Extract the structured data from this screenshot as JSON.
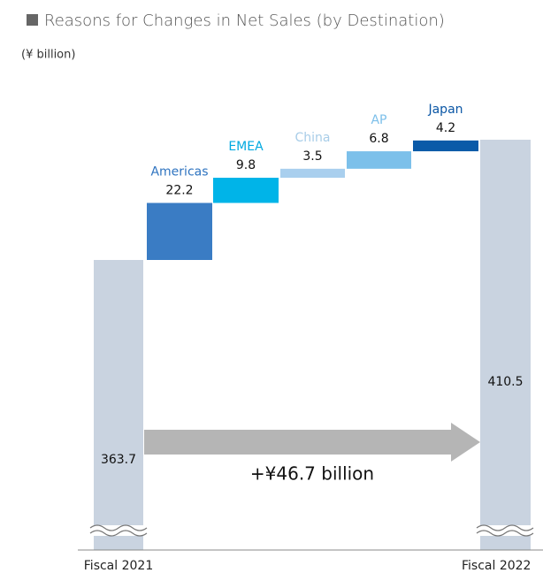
{
  "chart_data": {
    "type": "waterfall",
    "title": "Reasons for Changes in Net Sales (by Destination)",
    "subtitle": "(¥ billion)",
    "categories": [
      "Fiscal 2021",
      "Americas",
      "EMEA",
      "China",
      "AP",
      "Japan",
      "Fiscal 2022"
    ],
    "values": [
      363.7,
      22.2,
      9.8,
      3.5,
      6.8,
      4.2,
      410.5
    ],
    "measure": [
      "absolute",
      "relative",
      "relative",
      "relative",
      "relative",
      "relative",
      "total"
    ],
    "colors": [
      "#c9d3e0",
      "#3a7cc4",
      "#00b4e8",
      "#a9cfee",
      "#7cc0ea",
      "#0a5aa8",
      "#c9d3e0"
    ],
    "label_colors": [
      "#222222",
      "#2f74c0",
      "#00a9e0",
      "#a8cde8",
      "#7cbfea",
      "#0a56a5",
      "#222222"
    ],
    "annotation": "+¥46.7 billion"
  }
}
